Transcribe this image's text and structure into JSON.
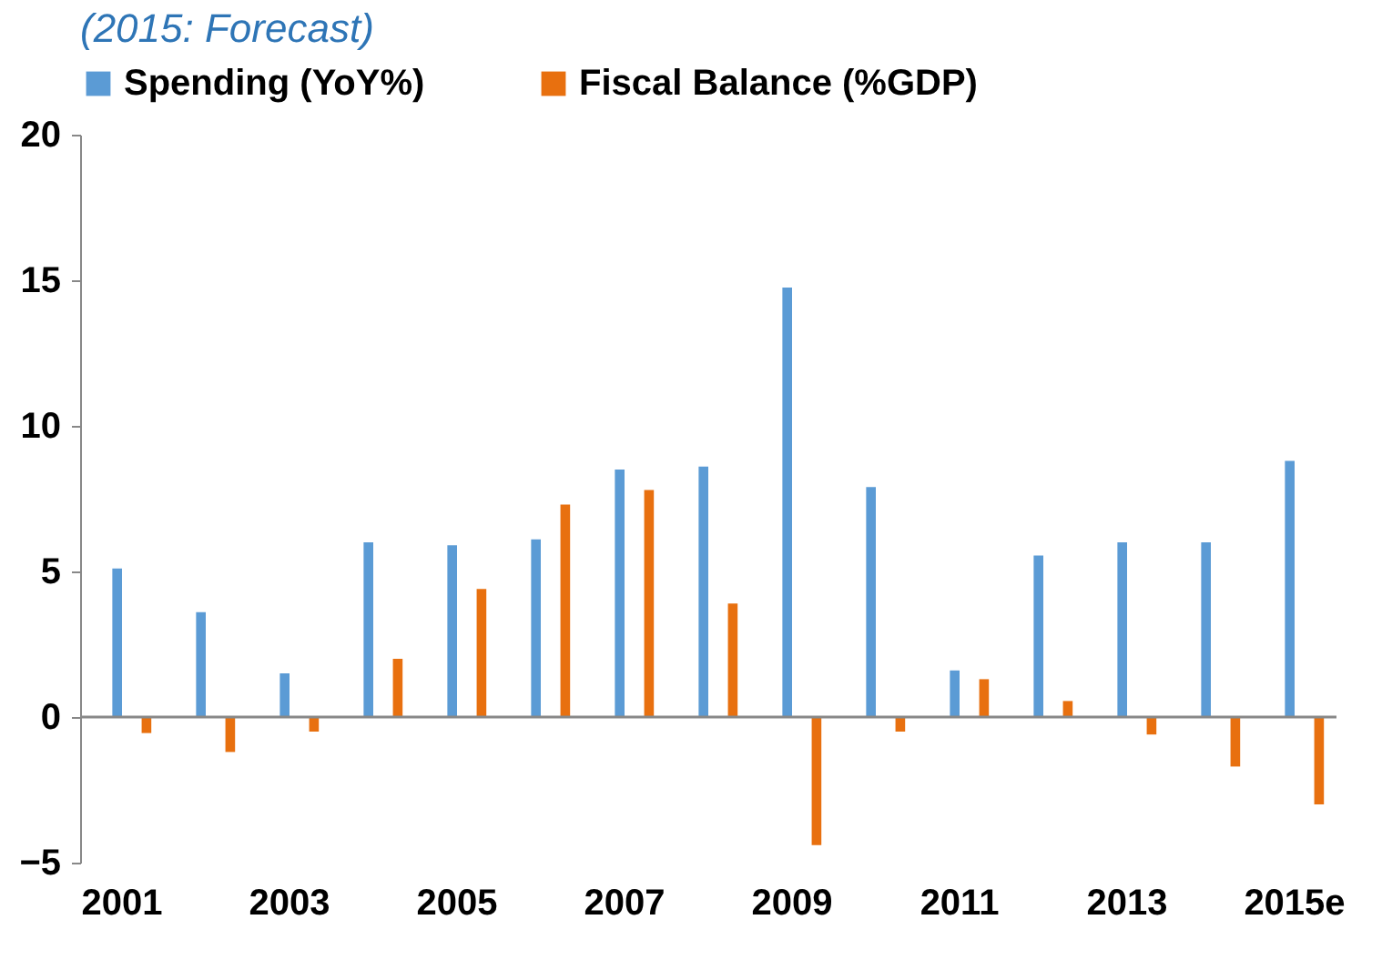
{
  "chart_data": {
    "type": "bar",
    "title": "(2015: Forecast)",
    "categories": [
      "2001",
      null,
      "2003",
      null,
      "2005",
      null,
      "2007",
      null,
      "2009",
      null,
      "2011",
      null,
      "2013",
      null,
      "2015e"
    ],
    "series": [
      {
        "name": "Spending (YoY%)",
        "color": "#5b9bd5",
        "values": [
          5.1,
          3.6,
          1.5,
          6.0,
          5.9,
          6.1,
          8.5,
          8.6,
          14.75,
          7.9,
          1.6,
          5.55,
          6.0,
          6.0,
          8.8
        ]
      },
      {
        "name": "Fiscal Balance (%GDP)",
        "color": "#e8700f",
        "values": [
          -0.55,
          -1.2,
          -0.5,
          2.0,
          4.4,
          7.3,
          7.8,
          3.9,
          -4.4,
          -0.5,
          1.3,
          0.55,
          -0.6,
          -1.7,
          -3.0
        ]
      }
    ],
    "ylim": [
      -5,
      20
    ],
    "yticks": [
      -5,
      0,
      5,
      10,
      15,
      20
    ],
    "ref_lines": [
      {
        "axis": "y",
        "value": 0
      }
    ],
    "grid": false,
    "legend": "top"
  }
}
